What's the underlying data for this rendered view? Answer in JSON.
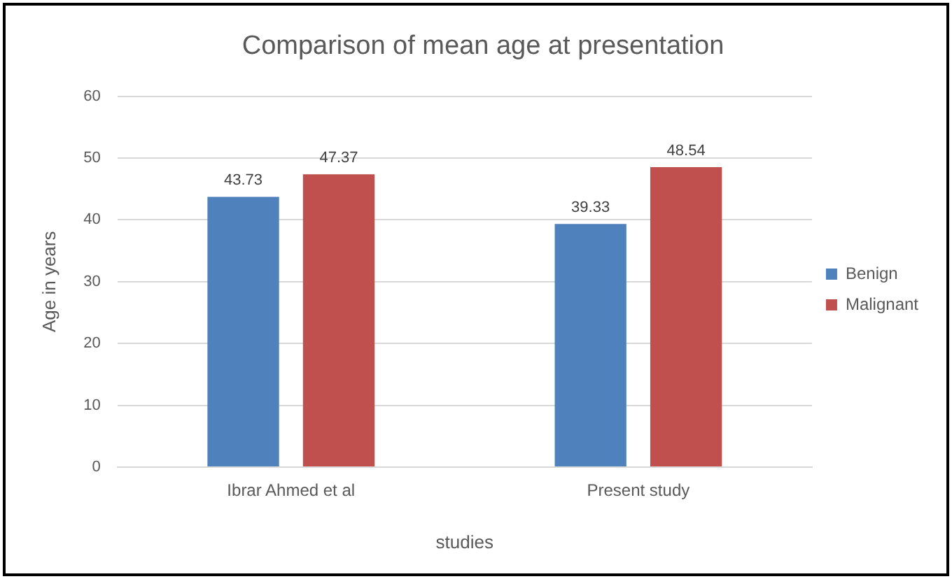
{
  "chart_data": {
    "type": "bar",
    "title": "Comparison of mean age at presentation",
    "xlabel": "studies",
    "ylabel": "Age in years",
    "categories": [
      "Ibrar Ahmed et al",
      "Present study"
    ],
    "series": [
      {
        "name": "Benign",
        "color": "#4f81bd",
        "values": [
          43.73,
          39.33
        ]
      },
      {
        "name": "Malignant",
        "color": "#c0504d",
        "values": [
          47.37,
          48.54
        ]
      }
    ],
    "ylim": [
      0,
      60
    ],
    "yticks": [
      0,
      10,
      20,
      30,
      40,
      50,
      60
    ],
    "grid": "y",
    "legend": "right",
    "data_labels": true
  }
}
